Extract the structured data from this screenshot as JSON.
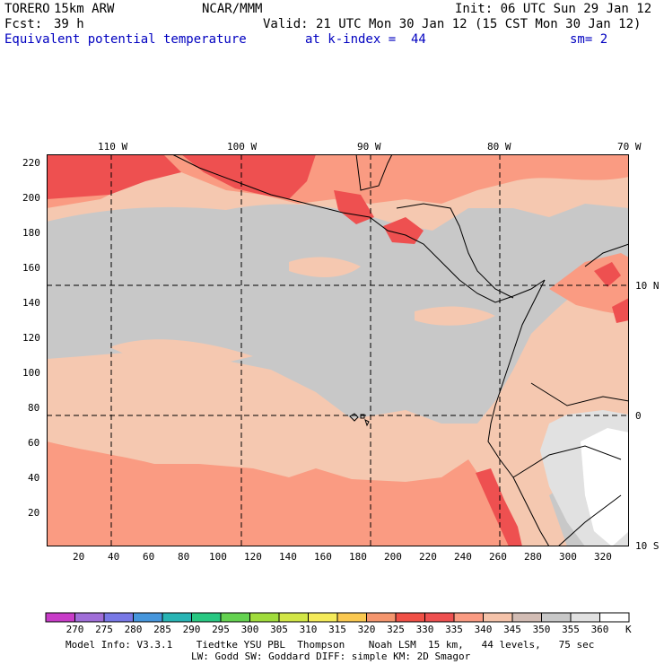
{
  "header": {
    "model": "TORERO",
    "resolution": "15km ARW",
    "center": "NCAR/MMM",
    "init": "Init: 06 UTC Sun 29 Jan 12",
    "fcst_label": "Fcst:",
    "fcst_hours": "39 h",
    "valid": "Valid: 21 UTC Mon 30 Jan 12 (15 CST Mon 30 Jan 12)",
    "field": "Equivalent potential temperature",
    "level": "at k-index =  44",
    "smoothing": "sm= 2"
  },
  "map": {
    "lon_labels": [
      "110 W",
      "100 W",
      "90 W",
      "80 W",
      "70 W"
    ],
    "lat_labels": [
      "10 N",
      "0",
      "10 S"
    ],
    "y_ticks": [
      "220",
      "200",
      "180",
      "160",
      "140",
      "120",
      "100",
      "80",
      "60",
      "40",
      "20"
    ],
    "x_ticks": [
      "20",
      "40",
      "60",
      "80",
      "100",
      "120",
      "140",
      "160",
      "180",
      "200",
      "220",
      "240",
      "260",
      "280",
      "300",
      "320"
    ]
  },
  "colorbar": {
    "labels": [
      "270",
      "275",
      "280",
      "285",
      "290",
      "295",
      "300",
      "305",
      "310",
      "315",
      "320",
      "325",
      "330",
      "335",
      "340",
      "345",
      "350",
      "355",
      "360"
    ],
    "unit": "K",
    "colors": [
      "#c83cc8",
      "#a06ed8",
      "#7878e6",
      "#4696dc",
      "#28b4b4",
      "#28c882",
      "#64d250",
      "#a0dc3c",
      "#d2e646",
      "#f5eb5a",
      "#fac850",
      "#f5966e",
      "#f05046",
      "#ee5050",
      "#fa9b82",
      "#f5c3aa",
      "#d2bcb4",
      "#c8c8c8",
      "#e1e1e1",
      "#ffffff"
    ]
  },
  "footer": {
    "line1": "Model Info: V3.3.1    Tiedtke YSU PBL  Thompson    Noah LSM  15 km,   44 levels,   75 sec",
    "line2": "LW: Godd SW: Goddard DIFF: simple KM: 2D Smagor"
  },
  "colors": {
    "warm_red": "#ee5050",
    "salmon": "#fa9b82",
    "peach": "#f5c8b0",
    "gray": "#c8c8c8",
    "light_gray": "#e1e1e1"
  }
}
